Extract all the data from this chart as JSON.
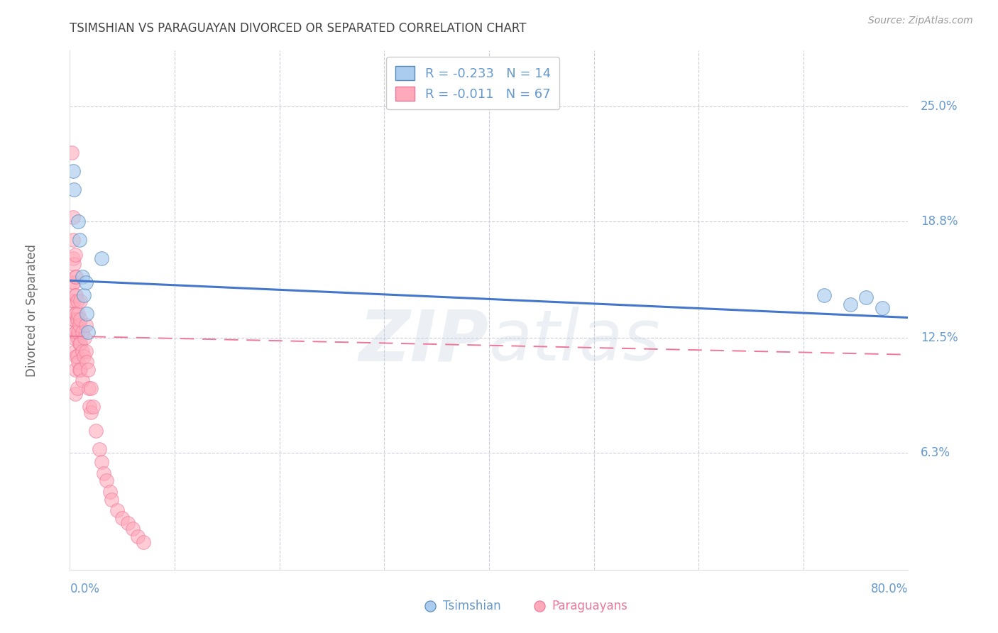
{
  "title": "TSIMSHIAN VS PARAGUAYAN DIVORCED OR SEPARATED CORRELATION CHART",
  "source": "Source: ZipAtlas.com",
  "ylabel": "Divorced or Separated",
  "xlim": [
    0.0,
    0.8
  ],
  "ylim": [
    0.0,
    0.28
  ],
  "legend_blue_r": "-0.233",
  "legend_blue_n": "14",
  "legend_pink_r": "-0.011",
  "legend_pink_n": "67",
  "tsimshian_x": [
    0.003,
    0.004,
    0.008,
    0.009,
    0.012,
    0.013,
    0.015,
    0.016,
    0.017,
    0.03,
    0.72,
    0.745,
    0.76,
    0.775
  ],
  "tsimshian_y": [
    0.215,
    0.205,
    0.188,
    0.178,
    0.158,
    0.148,
    0.155,
    0.138,
    0.128,
    0.168,
    0.148,
    0.143,
    0.147,
    0.141
  ],
  "paraguayan_x": [
    0.002,
    0.003,
    0.003,
    0.003,
    0.003,
    0.003,
    0.003,
    0.004,
    0.004,
    0.004,
    0.004,
    0.004,
    0.005,
    0.005,
    0.005,
    0.005,
    0.005,
    0.005,
    0.005,
    0.005,
    0.006,
    0.006,
    0.006,
    0.006,
    0.006,
    0.007,
    0.007,
    0.007,
    0.007,
    0.007,
    0.008,
    0.008,
    0.008,
    0.009,
    0.009,
    0.009,
    0.01,
    0.01,
    0.01,
    0.01,
    0.012,
    0.012,
    0.012,
    0.013,
    0.014,
    0.015,
    0.015,
    0.016,
    0.017,
    0.018,
    0.019,
    0.02,
    0.02,
    0.022,
    0.025,
    0.028,
    0.03,
    0.032,
    0.035,
    0.038,
    0.04,
    0.045,
    0.05,
    0.055,
    0.06,
    0.065,
    0.07
  ],
  "paraguayan_y": [
    0.225,
    0.19,
    0.178,
    0.168,
    0.155,
    0.145,
    0.135,
    0.165,
    0.155,
    0.145,
    0.135,
    0.125,
    0.17,
    0.158,
    0.148,
    0.138,
    0.128,
    0.118,
    0.108,
    0.095,
    0.158,
    0.148,
    0.138,
    0.128,
    0.115,
    0.145,
    0.135,
    0.125,
    0.115,
    0.098,
    0.138,
    0.128,
    0.112,
    0.132,
    0.122,
    0.108,
    0.145,
    0.135,
    0.122,
    0.108,
    0.128,
    0.118,
    0.102,
    0.115,
    0.125,
    0.132,
    0.118,
    0.112,
    0.108,
    0.098,
    0.088,
    0.098,
    0.085,
    0.088,
    0.075,
    0.065,
    0.058,
    0.052,
    0.048,
    0.042,
    0.038,
    0.032,
    0.028,
    0.025,
    0.022,
    0.018,
    0.015
  ],
  "blue_line_x": [
    0.0,
    0.8
  ],
  "blue_line_y": [
    0.156,
    0.136
  ],
  "pink_line_x": [
    0.0,
    0.8
  ],
  "pink_line_y": [
    0.126,
    0.116
  ],
  "blue_scatter_color": "#AACCEE",
  "blue_scatter_edge": "#5588BB",
  "pink_scatter_color": "#FFAABB",
  "pink_scatter_edge": "#EE7799",
  "blue_line_color": "#4477CC",
  "pink_line_color": "#EE7799",
  "grid_color": "#CCCCDD",
  "axis_label_color": "#6699CC",
  "title_color": "#444444",
  "watermark_color": "#BBCCDD",
  "background_color": "#FFFFFF",
  "ytick_positions": [
    0.063,
    0.125,
    0.188,
    0.25
  ],
  "ytick_labels": [
    "6.3%",
    "12.5%",
    "18.8%",
    "25.0%"
  ]
}
